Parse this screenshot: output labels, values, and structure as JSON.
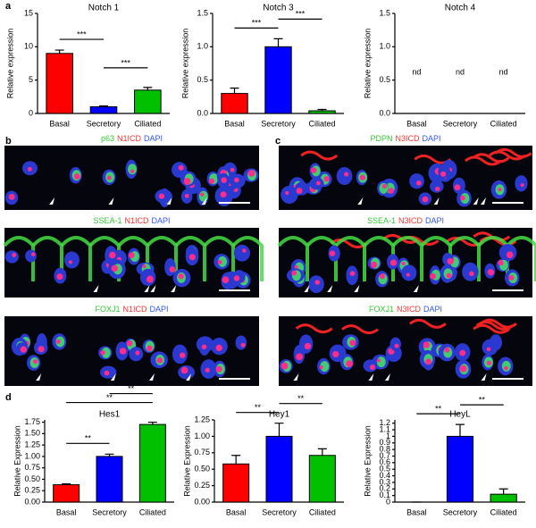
{
  "panel_labels": [
    "a",
    "b",
    "c",
    "d"
  ],
  "images": [
    {
      "panel": "b",
      "stains": [
        "p63",
        "N1ICD",
        "DAPI"
      ]
    },
    {
      "panel": "b",
      "stains": [
        "SSEA-1",
        "N1ICD",
        "DAPI"
      ]
    },
    {
      "panel": "b",
      "stains": [
        "FOXJ1",
        "N1ICD",
        "DAPI"
      ]
    },
    {
      "panel": "c",
      "stains": [
        "PDPN",
        "N3ICD",
        "DAPI"
      ]
    },
    {
      "panel": "c",
      "stains": [
        "SSEA-1",
        "N3ICD",
        "DAPI"
      ]
    },
    {
      "panel": "c",
      "stains": [
        "FOXJ1",
        "N3ICD",
        "DAPI"
      ]
    }
  ],
  "chart_data": [
    {
      "type": "bar",
      "title": "Notch 1",
      "ylabel": "Relative expression",
      "categories": [
        "Basal",
        "Secretory",
        "Ciliated"
      ],
      "values": [
        9,
        1,
        3.5
      ],
      "errors": [
        0.5,
        0.12,
        0.4
      ],
      "colors": [
        "#ff0000",
        "#0000ff",
        "#00c000"
      ],
      "ylim": [
        0,
        15
      ],
      "yticks": [
        0,
        5,
        10,
        15
      ],
      "brackets": [
        {
          "from": "Basal",
          "to": "Secretory",
          "label": "***"
        },
        {
          "from": "Secretory",
          "to": "Ciliated",
          "label": "***"
        }
      ]
    },
    {
      "type": "bar",
      "title": "Notch 3",
      "ylabel": "Relative expression",
      "categories": [
        "Basal",
        "Secretory",
        "Ciliated"
      ],
      "values": [
        0.3,
        1.0,
        0.04
      ],
      "errors": [
        0.08,
        0.12,
        0.02
      ],
      "colors": [
        "#ff0000",
        "#0000ff",
        "#00c000"
      ],
      "ylim": [
        0,
        1.5
      ],
      "yticks": [
        {
          "value": 0,
          "label": "0.0"
        },
        0.5,
        {
          "value": 1,
          "label": "1.0"
        },
        1.5
      ],
      "brackets": [
        {
          "from": "Basal",
          "to": "Secretory",
          "label": "***"
        },
        {
          "from": "Secretory",
          "to": "Ciliated",
          "label": "***"
        }
      ]
    },
    {
      "type": "bar",
      "title": "Notch 4",
      "ylabel": "Relative expression",
      "categories": [
        "Basal",
        "Secretory",
        "Ciliated"
      ],
      "values": [
        null,
        null,
        null
      ],
      "value_labels": [
        "nd",
        "nd",
        "nd"
      ],
      "colors": [
        "#ff0000",
        "#0000ff",
        "#00c000"
      ],
      "ylim": [
        0,
        1.5
      ],
      "yticks": [
        {
          "value": 0,
          "label": "0.0"
        },
        0.5,
        {
          "value": 1,
          "label": "1.0"
        },
        1.5
      ]
    },
    {
      "type": "bar",
      "title": "Hes1",
      "ylabel": "Relative Expression",
      "categories": [
        "Basal",
        "Secretory",
        "Ciliated"
      ],
      "values": [
        0.38,
        1.0,
        1.7
      ],
      "errors": [
        0.02,
        0.05,
        0.05
      ],
      "colors": [
        "#ff0000",
        "#0000ff",
        "#00c000"
      ],
      "ylim": [
        0,
        1.8
      ],
      "yticks": [
        {
          "value": 0,
          "label": "0.00"
        },
        0.25,
        {
          "value": 0.5,
          "label": "0.50"
        },
        0.75,
        {
          "value": 1,
          "label": "1.00"
        },
        1.25,
        {
          "value": 1.5,
          "label": "1.50"
        },
        1.75
      ],
      "brackets": [
        {
          "from": "Basal",
          "to": "Secretory",
          "label": "**"
        },
        {
          "from": "Basal",
          "to": "Ciliated",
          "label": "**"
        },
        {
          "from": "Secretory",
          "to": "Ciliated",
          "label": "**"
        }
      ]
    },
    {
      "type": "bar",
      "title": "Hey1",
      "ylabel": "Relative Expression",
      "categories": [
        "Basal",
        "Secretory",
        "Ciliated"
      ],
      "values": [
        0.58,
        1.0,
        0.71
      ],
      "errors": [
        0.13,
        0.2,
        0.1
      ],
      "colors": [
        "#ff0000",
        "#0000ff",
        "#00c000"
      ],
      "ylim": [
        0,
        1.25
      ],
      "yticks": [
        {
          "value": 0,
          "label": "0.00"
        },
        0.25,
        {
          "value": 0.5,
          "label": "0.50"
        },
        0.75,
        {
          "value": 1,
          "label": "1.00"
        },
        1.25
      ],
      "brackets": [
        {
          "from": "Basal",
          "to": "Secretory",
          "label": "**"
        },
        {
          "from": "Secretory",
          "to": "Ciliated",
          "label": "**"
        }
      ]
    },
    {
      "type": "bar",
      "title": "HeyL",
      "ylabel": "Relative Expression",
      "categories": [
        "Basal",
        "Secretory",
        "Ciliated"
      ],
      "values": [
        0,
        1.0,
        0.12
      ],
      "errors": [
        0,
        0.18,
        0.08
      ],
      "colors": [
        "#ff0000",
        "#0000ff",
        "#00c000"
      ],
      "ylim": [
        0,
        1.25
      ],
      "yticks": [
        0,
        0.1,
        0.2,
        0.3,
        0.4,
        0.5,
        0.6,
        0.7,
        0.8,
        0.9,
        1,
        1.1,
        1.2
      ],
      "brackets": [
        {
          "from": "Basal",
          "to": "Secretory",
          "label": "**"
        },
        {
          "from": "Secretory",
          "to": "Ciliated",
          "label": "**"
        }
      ]
    }
  ]
}
